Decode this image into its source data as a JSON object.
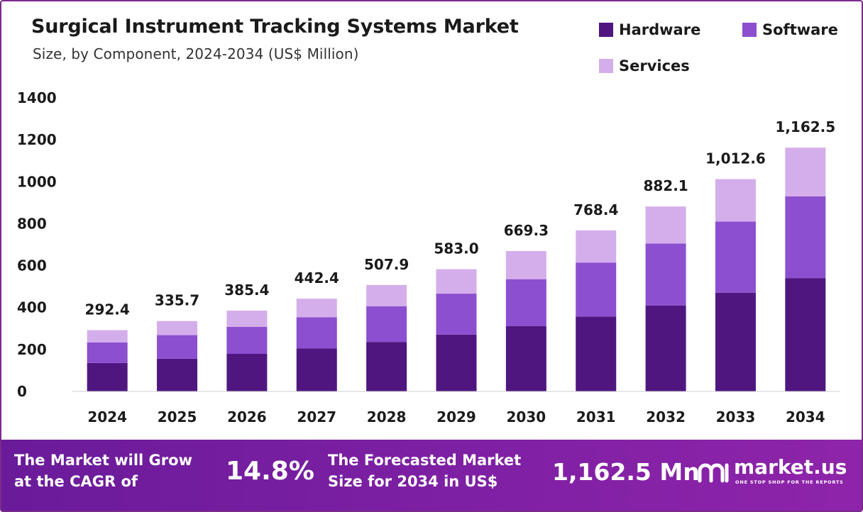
{
  "header": {
    "title": "Surgical Instrument Tracking Systems Market",
    "subtitle": "Size, by Component, 2024-2034 (US$ Million)"
  },
  "legend": [
    {
      "label": "Hardware",
      "color": "#4f1680"
    },
    {
      "label": "Software",
      "color": "#8c4fcf"
    },
    {
      "label": "Services",
      "color": "#d4aeeb"
    }
  ],
  "chart_data": {
    "type": "bar",
    "stacked": true,
    "categories": [
      "2024",
      "2025",
      "2026",
      "2027",
      "2028",
      "2029",
      "2030",
      "2031",
      "2032",
      "2033",
      "2034"
    ],
    "series": [
      {
        "name": "Hardware",
        "color": "#4f1680",
        "values": [
          136.0,
          156.1,
          179.2,
          205.7,
          236.2,
          271.1,
          311.2,
          357.3,
          410.2,
          470.9,
          540.6
        ]
      },
      {
        "name": "Software",
        "color": "#8c4fcf",
        "values": [
          98.0,
          112.5,
          129.1,
          148.2,
          170.1,
          195.3,
          224.2,
          257.4,
          295.5,
          339.2,
          389.4
        ]
      },
      {
        "name": "Services",
        "color": "#d4aeeb",
        "values": [
          58.4,
          67.1,
          77.1,
          88.5,
          101.6,
          116.6,
          133.9,
          153.7,
          176.4,
          202.5,
          232.5
        ]
      }
    ],
    "totals": [
      "292.4",
      "335.7",
      "385.4",
      "442.4",
      "507.9",
      "583.0",
      "669.3",
      "768.4",
      "882.1",
      "1,012.6",
      "1,162.5"
    ],
    "yticks": [
      0,
      200,
      400,
      600,
      800,
      1000,
      1200,
      1400
    ],
    "ylim": [
      0,
      1400
    ],
    "grid": false,
    "legend_position": "top-right"
  },
  "footer": {
    "cagr_text": "The Market will Grow\nat the CAGR of",
    "cagr_value": "14.8%",
    "forecast_text": "The Forecasted Market\nSize for 2034 in US$",
    "forecast_value": "1,162.5 Mn",
    "brand": "market.us",
    "tagline": "ONE STOP SHOP FOR THE REPORTS"
  }
}
